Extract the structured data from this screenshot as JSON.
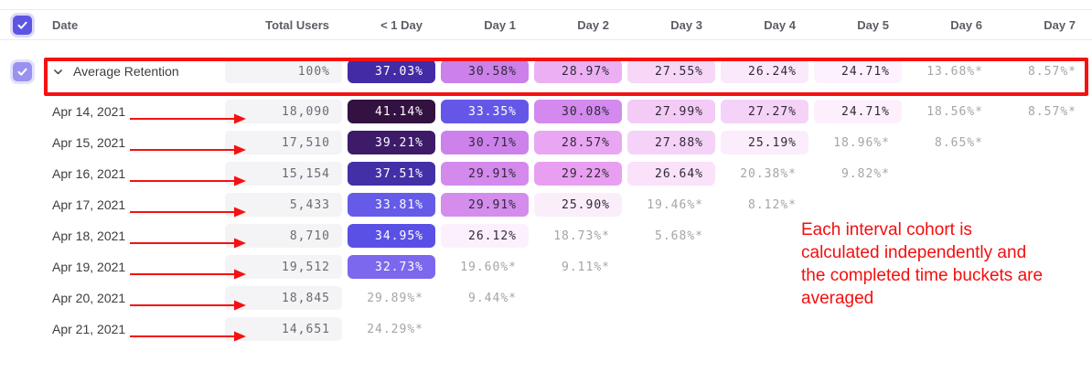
{
  "colors": {
    "accent_purple": "#5E55E2",
    "annotation_red": "#F40E0E",
    "highlight_border_red": "#F51111",
    "total_cell_bg": "#F4F3F5",
    "starred_text": "#A5A4A9"
  },
  "table": {
    "columns": [
      "Date",
      "Total Users",
      "< 1 Day",
      "Day 1",
      "Day 2",
      "Day 3",
      "Day 4",
      "Day 5",
      "Day 6",
      "Day 7"
    ],
    "rows": [
      {
        "id": "average",
        "label": "Average Retention",
        "checkbox": true,
        "expander": true,
        "highlighted": true,
        "total": "100%",
        "cells": [
          {
            "v": "37.03%",
            "bg": "#442BA6",
            "light": true
          },
          {
            "v": "30.58%",
            "bg": "#CC80E9"
          },
          {
            "v": "28.97%",
            "bg": "#EDAFF4"
          },
          {
            "v": "27.55%",
            "bg": "#F6D7F8"
          },
          {
            "v": "26.24%",
            "bg": "#FAE8FB"
          },
          {
            "v": "24.71%",
            "bg": "#FDF1FD"
          },
          {
            "v": "13.68%*"
          },
          {
            "v": "8.57%*"
          }
        ]
      },
      {
        "id": "apr-14-2021",
        "label": "Apr 14, 2021",
        "arrow": true,
        "total": "18,090",
        "cells": [
          {
            "v": "41.14%",
            "bg": "#331140",
            "light": true
          },
          {
            "v": "33.35%",
            "bg": "#6457E8",
            "light": true
          },
          {
            "v": "30.08%",
            "bg": "#D389ED"
          },
          {
            "v": "27.99%",
            "bg": "#F3CBF6"
          },
          {
            "v": "27.27%",
            "bg": "#F5D2F7"
          },
          {
            "v": "24.71%",
            "bg": "#FDF0FC"
          },
          {
            "v": "18.56%*"
          },
          {
            "v": "8.57%*"
          }
        ]
      },
      {
        "id": "apr-15-2021",
        "label": "Apr 15, 2021",
        "arrow": true,
        "total": "17,510",
        "cells": [
          {
            "v": "39.21%",
            "bg": "#3D1B69",
            "light": true
          },
          {
            "v": "30.71%",
            "bg": "#CC82EA"
          },
          {
            "v": "28.57%",
            "bg": "#E9A6F2"
          },
          {
            "v": "27.88%",
            "bg": "#F5D2F7"
          },
          {
            "v": "25.19%",
            "bg": "#FBEDFB"
          },
          {
            "v": "18.96%*"
          },
          {
            "v": "8.65%*"
          }
        ]
      },
      {
        "id": "apr-16-2021",
        "label": "Apr 16, 2021",
        "arrow": true,
        "total": "15,154",
        "cells": [
          {
            "v": "37.51%",
            "bg": "#4330A6",
            "light": true
          },
          {
            "v": "29.91%",
            "bg": "#D489ED"
          },
          {
            "v": "29.22%",
            "bg": "#E99FF1"
          },
          {
            "v": "26.64%",
            "bg": "#F9E2FA"
          },
          {
            "v": "20.38%*"
          },
          {
            "v": "9.82%*"
          }
        ]
      },
      {
        "id": "apr-17-2021",
        "label": "Apr 17, 2021",
        "arrow": true,
        "total": "5,433",
        "cells": [
          {
            "v": "33.81%",
            "bg": "#655BE8",
            "light": true
          },
          {
            "v": "29.91%",
            "bg": "#D48CED"
          },
          {
            "v": "25.90%",
            "bg": "#FBEEFB"
          },
          {
            "v": "19.46%*"
          },
          {
            "v": "8.12%*"
          }
        ]
      },
      {
        "id": "apr-18-2021",
        "label": "Apr 18, 2021",
        "arrow": true,
        "total": "8,710",
        "cells": [
          {
            "v": "34.95%",
            "bg": "#5B50E5",
            "light": true
          },
          {
            "v": "26.12%",
            "bg": "#FDF0FD"
          },
          {
            "v": "18.73%*"
          },
          {
            "v": "5.68%*"
          }
        ]
      },
      {
        "id": "apr-19-2021",
        "label": "Apr 19, 2021",
        "arrow": true,
        "total": "19,512",
        "cells": [
          {
            "v": "32.73%",
            "bg": "#7B68EE",
            "light": true
          },
          {
            "v": "19.60%*"
          },
          {
            "v": "9.11%*"
          }
        ]
      },
      {
        "id": "apr-20-2021",
        "label": "Apr 20, 2021",
        "arrow": true,
        "total": "18,845",
        "cells": [
          {
            "v": "29.89%*"
          },
          {
            "v": "9.44%*"
          }
        ]
      },
      {
        "id": "apr-21-2021",
        "label": "Apr 21, 2021",
        "arrow": true,
        "total": "14,651",
        "cells": [
          {
            "v": "24.29%*"
          }
        ]
      }
    ]
  },
  "annotation": {
    "lines": [
      "Each interval cohort is",
      "calculated independently and",
      "the completed time buckets are",
      "averaged"
    ]
  }
}
